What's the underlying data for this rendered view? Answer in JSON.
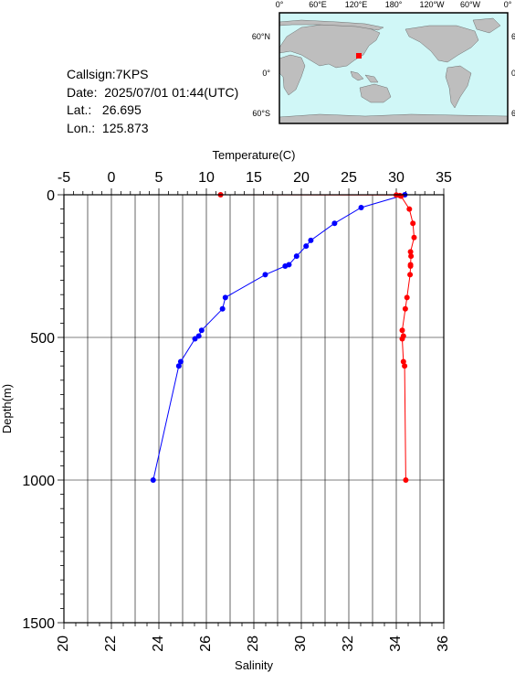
{
  "station": {
    "callsign": "Callsign:7KPS",
    "date": "Date:  2025/07/01 01:44(UTC)",
    "lat": "Lat.:   26.695",
    "lon": "Lon.:  125.873"
  },
  "map": {
    "lon_labels": [
      "0°",
      "60°E",
      "120°E",
      "180°",
      "120°W",
      "60°W",
      "0°"
    ],
    "lat_labels": [
      "60°N",
      "0°",
      "60°S"
    ],
    "ocean_color": "#d0f7f7",
    "land_color": "#bebebe",
    "marker_color": "#ff0000"
  },
  "chart_data": {
    "type": "line",
    "y_axis": {
      "label": "Depth(m)",
      "range": [
        0,
        1500
      ],
      "inverted": true,
      "ticks": [
        0,
        500,
        1000,
        1500
      ]
    },
    "top_axis": {
      "label": "Temperature(C)",
      "range": [
        -5,
        35
      ],
      "ticks": [
        -5,
        0,
        5,
        10,
        15,
        20,
        25,
        30,
        35
      ]
    },
    "bottom_axis": {
      "label": "Salinity",
      "range": [
        20,
        36
      ],
      "ticks": [
        20,
        22,
        24,
        26,
        28,
        30,
        32,
        34,
        36
      ]
    },
    "grid": true,
    "series": [
      {
        "variable": "temperature",
        "axis": "top",
        "color": "#0000ff",
        "depth": [
          0,
          45,
          100,
          160,
          180,
          215,
          245,
          250,
          280,
          360,
          400,
          475,
          495,
          505,
          585,
          600,
          1000
        ],
        "values": [
          30.9,
          26.3,
          23.5,
          21.0,
          20.5,
          19.5,
          18.7,
          18.3,
          16.2,
          12.0,
          11.7,
          9.5,
          9.2,
          8.8,
          7.3,
          7.1,
          4.4
        ]
      },
      {
        "variable": "salinity",
        "axis": "bottom",
        "color": "#ff0000",
        "depth": [
          0,
          1,
          3,
          5,
          50,
          100,
          150,
          200,
          215,
          245,
          250,
          280,
          360,
          400,
          475,
          495,
          505,
          585,
          600,
          1000
        ],
        "values": [
          26.6,
          34.0,
          34.15,
          34.2,
          34.55,
          34.7,
          34.75,
          34.6,
          34.62,
          34.6,
          34.6,
          34.58,
          34.45,
          34.38,
          34.25,
          34.3,
          34.25,
          34.3,
          34.35,
          34.4
        ]
      }
    ]
  }
}
